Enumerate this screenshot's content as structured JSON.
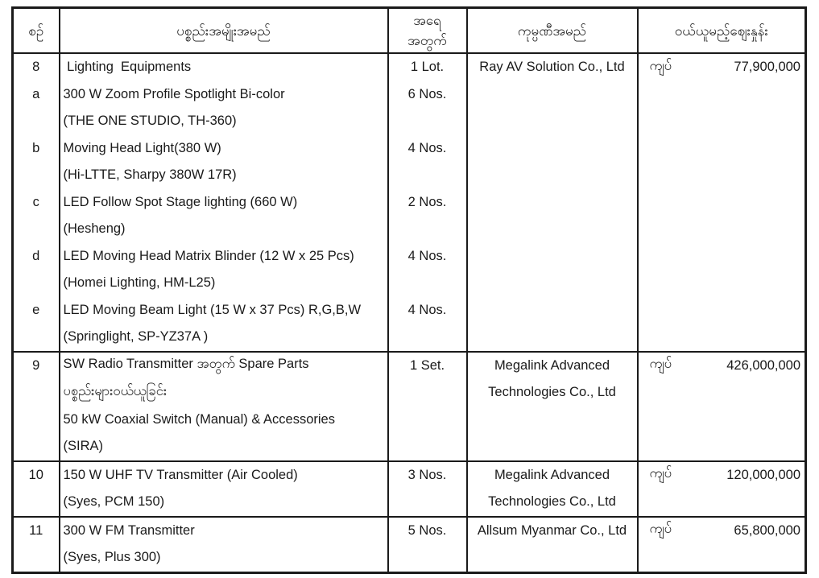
{
  "table": {
    "headers": {
      "no": "စဉ်",
      "item": "ပစ္စည်းအမျိုးအမည်",
      "qty": [
        "အရေ",
        "အတွက်"
      ],
      "company": "ကုမ္ပဏီအမည်",
      "price": "ဝယ်ယူမည့်ဈေးနှုန်း"
    },
    "rows": [
      {
        "nos": [
          "8",
          "a",
          "",
          "b",
          "",
          "c",
          "",
          "d",
          "",
          "e",
          ""
        ],
        "items": [
          " Lighting  Equipments",
          "300 W Zoom Profile Spotlight Bi-color",
          "(THE ONE STUDIO, TH-360)",
          "Moving Head Light(380 W)",
          "(Hi-LTTE, Sharpy 380W 17R)",
          "LED Follow Spot Stage lighting (660 W)",
          "(Hesheng)",
          "LED Moving Head Matrix Blinder (12 W x 25 Pcs)",
          "(Homei Lighting, HM-L25)",
          "LED Moving Beam Light (15 W x 37 Pcs) R,G,B,W",
          "(Springlight, SP-YZ37A )"
        ],
        "qtys": [
          "1 Lot.",
          "6 Nos.",
          "",
          "4 Nos.",
          "",
          "2 Nos.",
          "",
          "4 Nos.",
          "",
          "4 Nos.",
          ""
        ],
        "company": [
          "Ray AV Solution Co., Ltd"
        ],
        "currency": "ကျပ်",
        "price": "77,900,000"
      },
      {
        "nos": [
          "9"
        ],
        "items": [
          "SW Radio Transmitter အတွက် Spare Parts",
          "ပစ္စည်းများဝယ်ယူခြင်း",
          "50 kW Coaxial Switch (Manual) & Accessories",
          "(SIRA)"
        ],
        "qtys": [
          "1 Set."
        ],
        "company": [
          "Megalink Advanced",
          "Technologies Co., Ltd"
        ],
        "currency": "ကျပ်",
        "price": "426,000,000"
      },
      {
        "nos": [
          "10"
        ],
        "items": [
          "150 W UHF TV Transmitter (Air Cooled)",
          "(Syes, PCM 150)"
        ],
        "qtys": [
          "3 Nos."
        ],
        "company": [
          "Megalink Advanced",
          "Technologies Co., Ltd"
        ],
        "currency": "ကျပ်",
        "price": "120,000,000"
      },
      {
        "nos": [
          "11"
        ],
        "items": [
          "300 W FM Transmitter",
          "(Syes, Plus 300)"
        ],
        "qtys": [
          "5 Nos."
        ],
        "company": [
          "Allsum Myanmar Co., Ltd"
        ],
        "currency": "ကျပ်",
        "price": "65,800,000"
      }
    ]
  }
}
